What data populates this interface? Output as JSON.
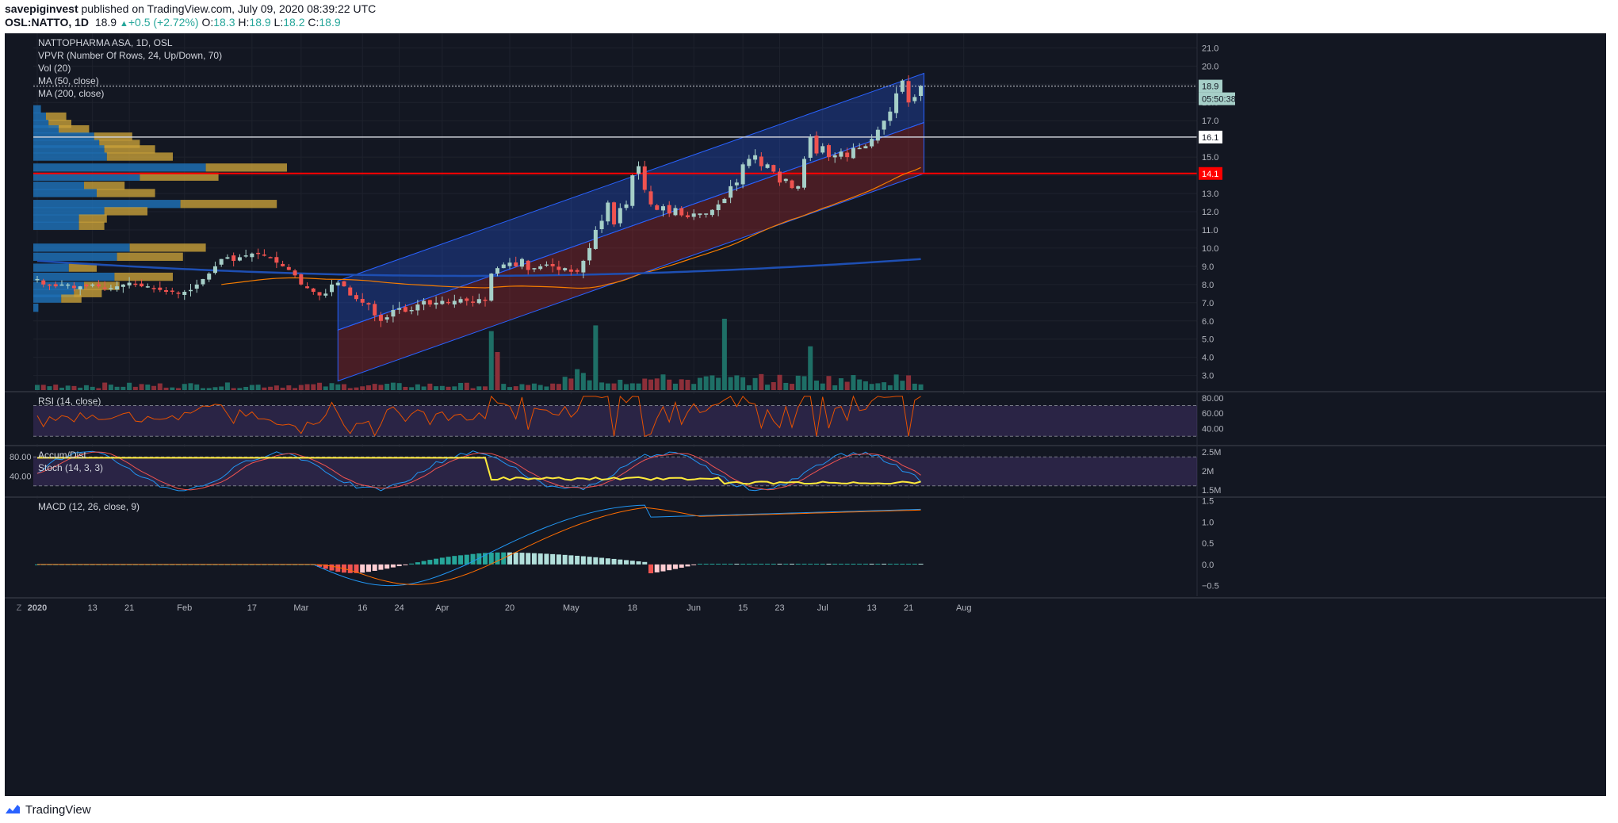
{
  "header": {
    "publisher": "savepiginvest",
    "published_text": "published on TradingView.com, July 09, 2020 08:39:22 UTC",
    "symbol_line": "OSL:NATTO, 1D",
    "last": "18.9",
    "change": "+0.5 (+2.72%)",
    "o_label": "O:",
    "o": "18.3",
    "h_label": "H:",
    "h": "18.9",
    "l_label": "L:",
    "l": "18.2",
    "c_label": "C:",
    "c": "18.9"
  },
  "footer": {
    "brand": "TradingView"
  },
  "colors": {
    "background": "#131722",
    "up": "#a6cfc8",
    "down": "#ef5350",
    "volume_up": "#1e6f66",
    "volume_down": "#8c2f39",
    "channel_upper": "#2962ff",
    "channel_lower": "#d32f2f",
    "ma50": "#f57c00",
    "ma200": "#1e4fb3",
    "rsi": "#e65100",
    "stoch_k": "#2196f3",
    "stoch_d": "#ef5350",
    "accum_dist": "#ffeb3b",
    "macd": "#2196f3",
    "signal": "#ff6d00",
    "support_line": "#ff0000"
  },
  "chart_data": {
    "type": "candlestick",
    "title": "NATTOPHARMA ASA, 1D, OSL",
    "indicators_legend": [
      "VPVR (Number Of Rows, 24, Up/Down, 70)",
      "Vol (20)",
      "MA (50, close)",
      "MA (200, close)"
    ],
    "x_ticks": [
      "2020",
      "13",
      "21",
      "Feb",
      "17",
      "Mar",
      "16",
      "24",
      "Apr",
      "20",
      "May",
      "18",
      "Jun",
      "15",
      "23",
      "Jul",
      "13",
      "21",
      "Aug"
    ],
    "price_axis": {
      "ylim": [
        2.2,
        21.8
      ],
      "ticks": [
        "21.0",
        "20.0",
        "19.0",
        "18.0",
        "17.0",
        "16.0",
        "15.0",
        "14.0",
        "13.0",
        "12.0",
        "11.0",
        "10.0",
        "9.0",
        "8.0",
        "7.0",
        "6.0",
        "5.0",
        "4.0",
        "3.0"
      ]
    },
    "price_labels": [
      {
        "value": "18.9",
        "price": 18.9,
        "kind": "last"
      },
      {
        "value": "05:50:38",
        "price": 18.35,
        "kind": "countdown"
      },
      {
        "value": "16.1",
        "price": 16.1,
        "kind": "line"
      },
      {
        "value": "14.1",
        "price": 14.1,
        "kind": "support"
      }
    ],
    "horizontal_lines": [
      16.1,
      14.1
    ],
    "channel_upper": {
      "x": [
        "Feb 19",
        "Jul 10"
      ],
      "y_low": [
        5.5,
        16.9
      ],
      "y_high": [
        8.2,
        19.6
      ]
    },
    "channel_lower": {
      "x": [
        "Feb 19",
        "Jul 10"
      ],
      "y_low": [
        2.7,
        14.1
      ],
      "y_high": [
        5.5,
        16.9
      ]
    },
    "closes": [
      8.3,
      8.0,
      8.0,
      7.9,
      8.0,
      8.0,
      7.8,
      7.9,
      7.9,
      8.0,
      7.9,
      7.8,
      7.8,
      7.9,
      8.0,
      8.1,
      8.0,
      7.9,
      7.9,
      7.8,
      7.7,
      7.6,
      7.6,
      7.5,
      7.6,
      7.7,
      8.0,
      8.3,
      8.6,
      9.0,
      9.4,
      9.5,
      9.3,
      9.5,
      9.6,
      9.7,
      9.7,
      9.6,
      9.5,
      9.2,
      9.0,
      8.8,
      8.5,
      8.0,
      7.8,
      7.6,
      7.4,
      7.5,
      8.0,
      8.1,
      7.9,
      7.4,
      7.2,
      7.0,
      6.9,
      6.3,
      6.0,
      6.2,
      6.6,
      6.7,
      6.5,
      6.6,
      6.9,
      7.1,
      6.9,
      7.0,
      7.1,
      7.0,
      7.1,
      7.2,
      7.1,
      7.0,
      7.2,
      7.1,
      8.6,
      8.9,
      9.1,
      9.2,
      9.0,
      9.4,
      8.8,
      8.9,
      9.0,
      9.1,
      9.0,
      8.8,
      8.9,
      8.7,
      8.7,
      9.3,
      10.0,
      11.0,
      11.5,
      12.5,
      11.3,
      12.2,
      12.4,
      14.0,
      14.5,
      13.2,
      12.4,
      12.1,
      12.3,
      11.9,
      12.2,
      11.8,
      11.7,
      11.9,
      11.9,
      11.9,
      12.1,
      12.4,
      12.7,
      13.4,
      13.6,
      14.6,
      14.9,
      15.1,
      14.5,
      14.6,
      14.2,
      13.6,
      13.8,
      13.3,
      13.4,
      14.9,
      16.1,
      15.2,
      15.6,
      15.0,
      15.1,
      15.3,
      15.0,
      15.5,
      15.5,
      15.6,
      16.0,
      16.5,
      17.0,
      17.5,
      18.5,
      19.2,
      18.0,
      18.3,
      18.9
    ],
    "volume": {
      "ylim": [
        0,
        1500000
      ]
    },
    "rsi": {
      "label": "RSI (14, close)",
      "ylim": [
        20,
        85
      ],
      "ticks": [
        "80.00",
        "60.00",
        "40.00"
      ],
      "bands": [
        70,
        30
      ]
    },
    "stoch": {
      "label_ad": "Accum/Dist",
      "label_stoch": "Stoch (14, 3, 3)",
      "ylim": [
        0,
        100
      ],
      "ticks_left": [
        "80.00",
        "40.00"
      ],
      "ticks_right": [
        "2.5M",
        "2M",
        "1.5M"
      ],
      "bands": [
        80,
        20
      ]
    },
    "macd": {
      "label": "MACD (12, 26, close, 9)",
      "ylim": [
        -0.75,
        1.55
      ],
      "ticks": [
        "1.5",
        "1.0",
        "0.5",
        "0.0",
        "−0.5"
      ]
    }
  }
}
